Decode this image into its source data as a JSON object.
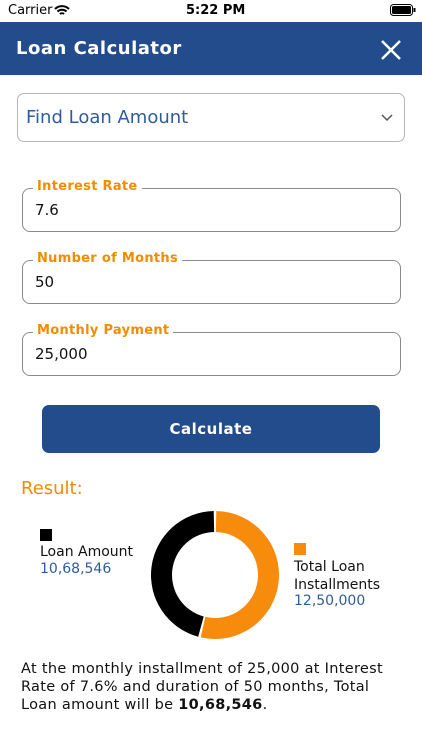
{
  "status_bar": {
    "carrier": "Carrier",
    "time": "5:22 PM"
  },
  "header": {
    "title": "Loan Calculator"
  },
  "dropdown": {
    "selected": "Find Loan Amount"
  },
  "fields": [
    {
      "label": "Interest Rate",
      "value": "7.6"
    },
    {
      "label": "Number of Months",
      "value": "50"
    },
    {
      "label": "Monthly Payment",
      "value": "25,000"
    }
  ],
  "button": {
    "label": "Calculate"
  },
  "result": {
    "title": "Result:",
    "chart_data": {
      "type": "donut",
      "series": [
        {
          "name": "Loan Amount",
          "color": "#000000",
          "value": 1068546,
          "value_label": "10,68,546"
        },
        {
          "name": "Total Loan Installments",
          "color": "#f78c0c",
          "value": 1250000,
          "value_label": "12,50,000"
        }
      ]
    },
    "summary": {
      "text": "At the monthly installment of 25,000 at Interest Rate of 7.6% and duration of 50 months, Total Loan amount will be ",
      "bold": "10,68,546",
      "end": "."
    }
  }
}
